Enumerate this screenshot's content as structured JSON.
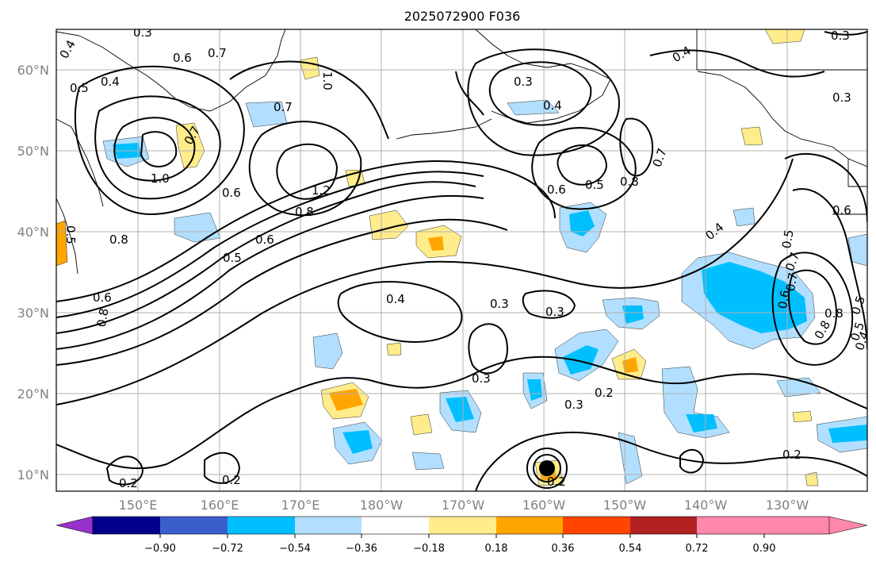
{
  "title": "2025072900 F036",
  "latitude_labels": [
    "60°N",
    "50°N",
    "40°N",
    "30°N",
    "20°N",
    "10°N"
  ],
  "longitude_labels": [
    "150°E",
    "160°E",
    "170°E",
    "180°W",
    "170°W",
    "160°W",
    "150°W",
    "140°W",
    "130°W"
  ],
  "colorbar": {
    "tick_labels": [
      "−0.90",
      "−0.72",
      "−0.54",
      "−0.36",
      "−0.18",
      "0.18",
      "0.36",
      "0.54",
      "0.72",
      "0.90"
    ],
    "colors": [
      "#9932cc",
      "#00008b",
      "#3a5fcd",
      "#00bfff",
      "#b2dfff",
      "#ffffff",
      "#ffec8b",
      "#ffa500",
      "#ff4500",
      "#b22222",
      "#ff88aa"
    ],
    "extend": "both"
  },
  "contour_labels": [
    "0.3",
    "0.4",
    "0.5",
    "0.6",
    "0.7",
    "1.0",
    "0.4",
    "0.7",
    "1.0",
    "0.6",
    "1.2",
    "0.8",
    "0.6",
    "0.5",
    "0.8",
    "0.5",
    "0.6",
    "0.8",
    "0.7",
    "0.4",
    "0.3",
    "0.3",
    "0.3",
    "0.3",
    "0.2",
    "0.2",
    "0.2",
    "0.2",
    "0.3",
    "0.4",
    "0.5",
    "0.6",
    "0.8",
    "0.7",
    "0.8",
    "0.5",
    "0.6",
    "0.7",
    "0.4",
    "0.3",
    "0.4",
    "0.5",
    "0.7",
    "0.6",
    "0.8",
    "0.5",
    "0.4",
    "0.2",
    "0.3"
  ],
  "map": {
    "region": "North Pacific",
    "lat_range": [
      8,
      65
    ],
    "lon_range": [
      140,
      243
    ],
    "grid": true
  }
}
